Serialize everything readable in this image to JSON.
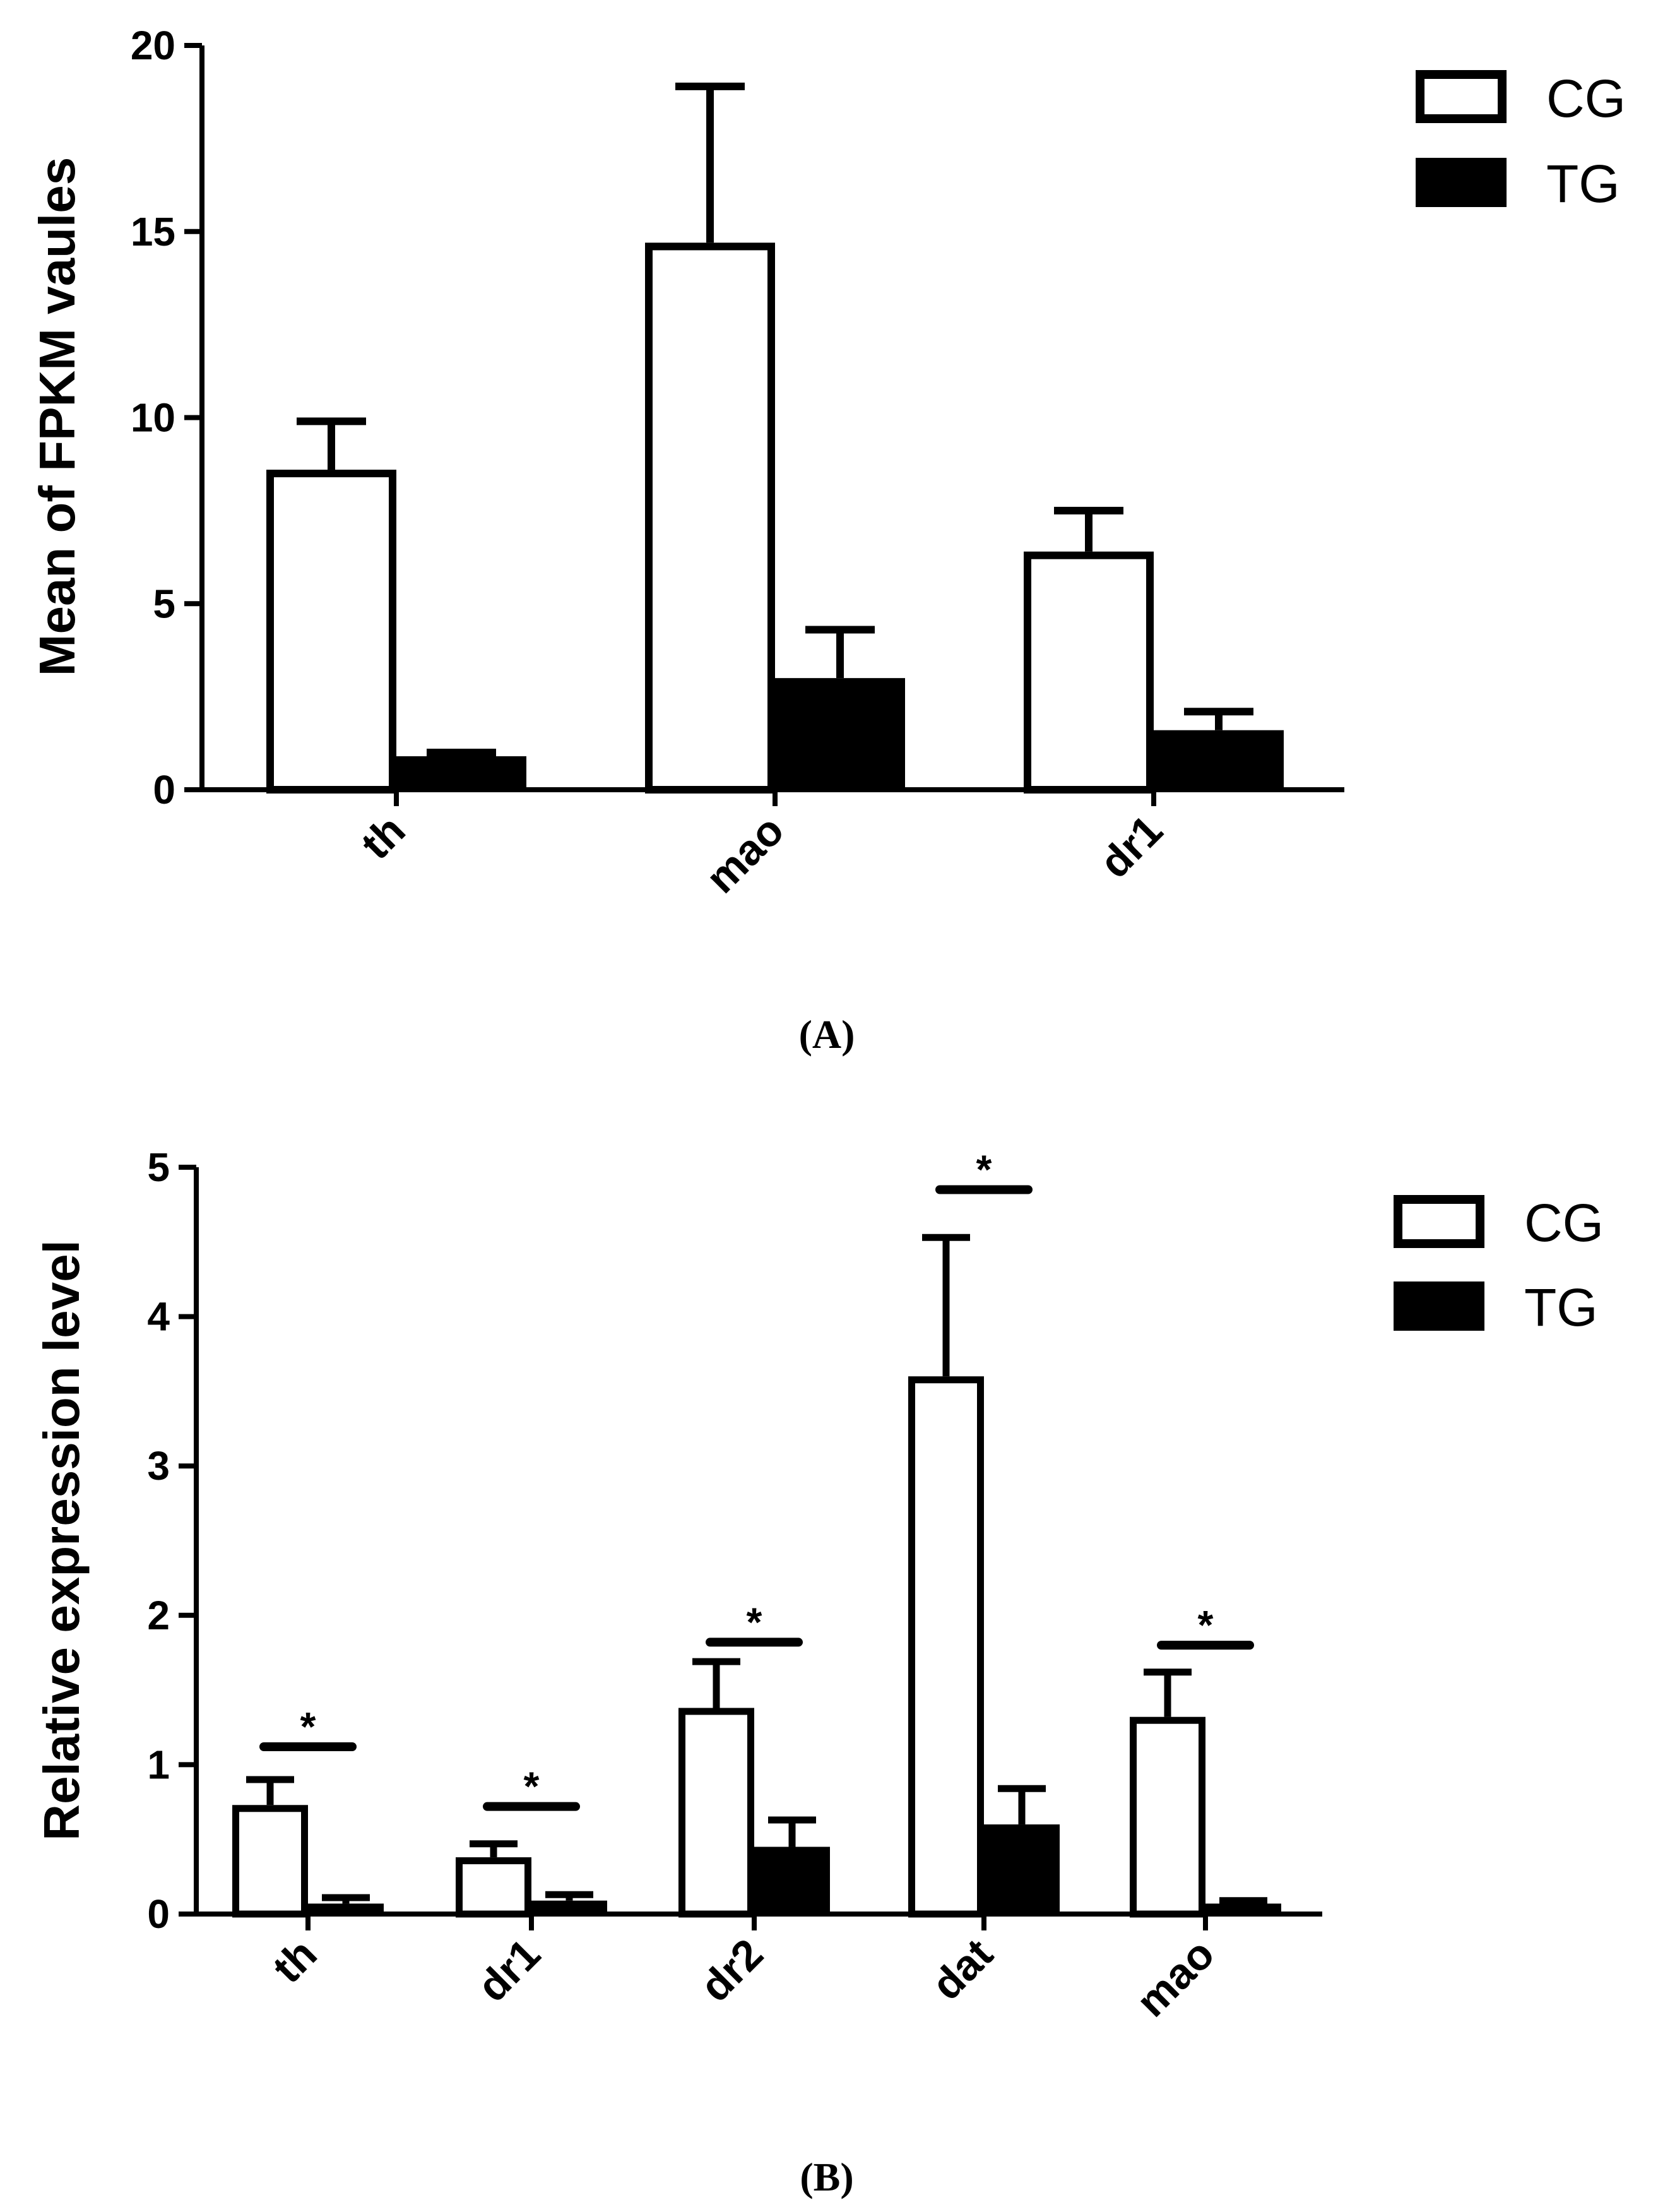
{
  "chart_data": [
    {
      "type": "bar",
      "panel_label": "(A)",
      "categories": [
        "th",
        "mao",
        "dr1"
      ],
      "series": [
        {
          "name": "CG",
          "values": [
            8.6,
            14.7,
            6.4
          ],
          "errors": [
            1.3,
            4.2,
            1.1
          ],
          "fill": "#ffffff"
        },
        {
          "name": "TG",
          "values": [
            0.9,
            3.0,
            1.6
          ],
          "errors": [
            0.1,
            1.3,
            0.5
          ],
          "fill": "#000000"
        }
      ],
      "title": "",
      "xlabel": "",
      "ylabel": "Mean of FPKM vaules",
      "ylim": [
        0,
        20
      ],
      "yticks": [
        "0",
        "5",
        "10",
        "15",
        "20"
      ],
      "significance": [],
      "legend": {
        "position": "top-right",
        "entries": [
          "CG",
          "TG"
        ]
      }
    },
    {
      "type": "bar",
      "panel_label": "(B)",
      "categories": [
        "th",
        "dr1",
        "dr2",
        "dat",
        "mao"
      ],
      "series": [
        {
          "name": "CG",
          "values": [
            0.73,
            0.38,
            1.38,
            3.6,
            1.32
          ],
          "errors": [
            0.17,
            0.09,
            0.31,
            0.93,
            0.3
          ],
          "fill": "#ffffff"
        },
        {
          "name": "TG",
          "values": [
            0.07,
            0.09,
            0.45,
            0.6,
            0.07
          ],
          "errors": [
            0.04,
            0.04,
            0.18,
            0.24,
            0.02
          ],
          "fill": "#000000"
        }
      ],
      "title": "",
      "xlabel": "",
      "ylabel": "Relative expression level",
      "ylim": [
        0,
        5
      ],
      "yticks": [
        "0",
        "1",
        "2",
        "3",
        "4",
        "5"
      ],
      "significance": [
        {
          "label": "*",
          "level": 1.12
        },
        {
          "label": "*",
          "level": 0.72
        },
        {
          "label": "*",
          "level": 1.82
        },
        {
          "label": "*",
          "level": 4.85
        },
        {
          "label": "*",
          "level": 1.8
        }
      ],
      "legend": {
        "position": "top-right",
        "entries": [
          "CG",
          "TG"
        ]
      }
    }
  ]
}
